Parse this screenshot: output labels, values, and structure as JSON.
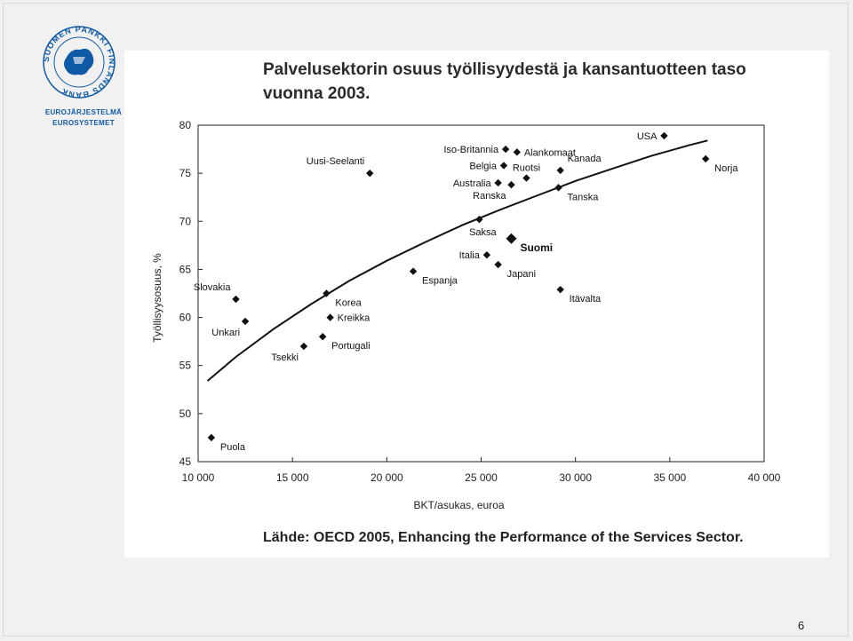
{
  "logo": {
    "ring_text": "SUOMEN PANKKI FINLANDS BANK",
    "line1": "EUROJÄRJESTELMÄ",
    "line2": "EUROSYSTEMET",
    "color": "#0f5aa6"
  },
  "source_text": "Lähde: OECD 2005, Enhancing the Performance of the Services Sector.",
  "page_number": "6",
  "chart_data": {
    "type": "scatter",
    "title": "Palvelusektorin osuus työllisyydestä ja kansantuotteen taso vuonna 2003.",
    "title_lines": [
      "Palvelusektorin osuus työllisyydestä ja kansantuotteen taso",
      "vuonna 2003."
    ],
    "xlabel": "BKT/asukas, euroa",
    "ylabel": "Työllisyysosuus, %",
    "xlim": [
      10000,
      40000
    ],
    "ylim": [
      45,
      80
    ],
    "x_ticks": [
      10000,
      15000,
      20000,
      25000,
      30000,
      35000,
      40000
    ],
    "x_tick_labels": [
      "10 000",
      "15 000",
      "20 000",
      "25 000",
      "30 000",
      "35 000",
      "40 000"
    ],
    "y_ticks": [
      45,
      50,
      55,
      60,
      65,
      70,
      75,
      80
    ],
    "y_tick_labels": [
      "45",
      "50",
      "55",
      "60",
      "65",
      "70",
      "75",
      "80"
    ],
    "points": [
      {
        "label": "Puola",
        "x": 10700,
        "y": 47.5,
        "pos": "right-below"
      },
      {
        "label": "Slovakia",
        "x": 12000,
        "y": 61.9,
        "pos": "above-left"
      },
      {
        "label": "Unkari",
        "x": 12500,
        "y": 59.6,
        "pos": "below-left"
      },
      {
        "label": "Tsekki",
        "x": 15600,
        "y": 57.0,
        "pos": "below-left"
      },
      {
        "label": "Portugali",
        "x": 16600,
        "y": 58.0,
        "pos": "right-below"
      },
      {
        "label": "Korea",
        "x": 16800,
        "y": 62.5,
        "pos": "right-below"
      },
      {
        "label": "Kreikka",
        "x": 17000,
        "y": 60.0,
        "pos": "right"
      },
      {
        "label": "Uusi-Seelanti",
        "x": 19100,
        "y": 75.0,
        "pos": "above-left"
      },
      {
        "label": "Espanja",
        "x": 21400,
        "y": 64.8,
        "pos": "right-below"
      },
      {
        "label": "Saksa",
        "x": 24900,
        "y": 70.2,
        "pos": "below"
      },
      {
        "label": "Italia",
        "x": 25300,
        "y": 66.5,
        "pos": "left"
      },
      {
        "label": "Japani",
        "x": 25900,
        "y": 65.5,
        "pos": "right-below"
      },
      {
        "label": "Suomi",
        "x": 26600,
        "y": 68.2,
        "pos": "right-below",
        "bold": true
      },
      {
        "label": "Australia",
        "x": 25900,
        "y": 74.0,
        "pos": "left"
      },
      {
        "label": "Ranska",
        "x": 26600,
        "y": 73.8,
        "pos": "below-left"
      },
      {
        "label": "Belgia",
        "x": 26200,
        "y": 75.8,
        "pos": "left"
      },
      {
        "label": "Ruotsi",
        "x": 27400,
        "y": 74.5,
        "pos": "above"
      },
      {
        "label": "Iso-Britannia",
        "x": 26300,
        "y": 77.5,
        "pos": "left"
      },
      {
        "label": "Alankomaat",
        "x": 26900,
        "y": 77.2,
        "pos": "right"
      },
      {
        "label": "Kanada",
        "x": 29200,
        "y": 75.3,
        "pos": "above-right"
      },
      {
        "label": "Tanska",
        "x": 29100,
        "y": 73.5,
        "pos": "right-below"
      },
      {
        "label": "Itävalta",
        "x": 29200,
        "y": 62.9,
        "pos": "right-below"
      },
      {
        "label": "USA",
        "x": 34700,
        "y": 78.9,
        "pos": "left"
      },
      {
        "label": "Norja",
        "x": 36900,
        "y": 76.5,
        "pos": "right-below"
      }
    ],
    "trend_line": {
      "x": [
        10500,
        12000,
        14000,
        16000,
        18000,
        20000,
        22000,
        24000,
        26000,
        28000,
        30000,
        32000,
        34000,
        36000,
        37000
      ],
      "y": [
        53.4,
        55.9,
        58.8,
        61.4,
        63.8,
        65.9,
        67.8,
        69.6,
        71.2,
        72.7,
        74.2,
        75.5,
        76.8,
        77.9,
        78.4
      ]
    },
    "grid": false,
    "legend": "none"
  }
}
